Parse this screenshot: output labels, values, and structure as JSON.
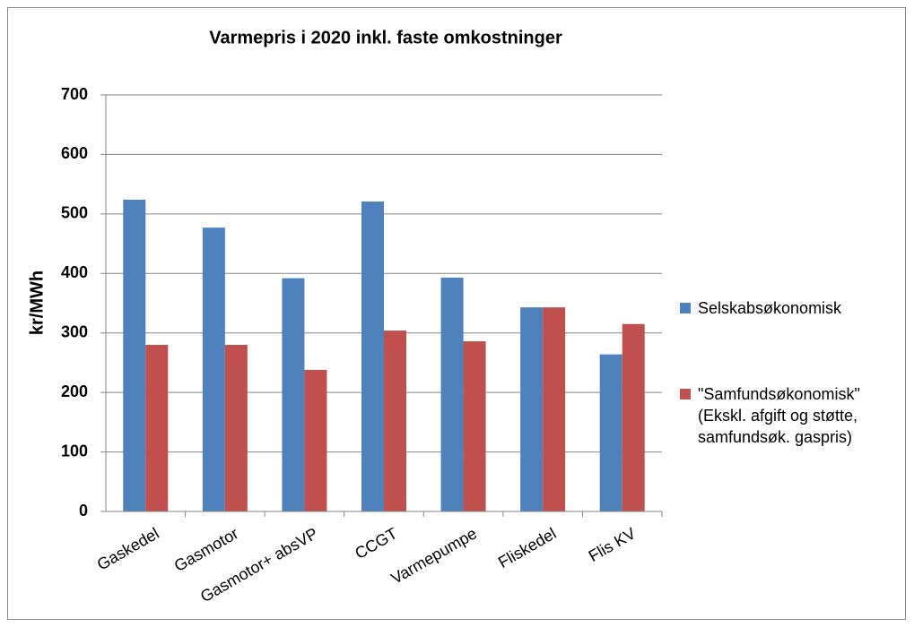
{
  "chart_data": {
    "type": "bar",
    "title": "Varmepris i 2020 inkl. faste omkostninger",
    "y_label": "kr/MWh",
    "categories": [
      "Gaskedel",
      "Gasmotor",
      "Gasmotor+ absVP",
      "CCGT",
      "Varmepumpe",
      "Fliskedel",
      "Flis KV"
    ],
    "series": [
      {
        "name": "Selskabsøkonomisk",
        "color": "#4f81bd",
        "values": [
          524,
          477,
          392,
          521,
          393,
          343,
          264
        ]
      },
      {
        "name": "\"Samfundsøkonomisk\" (Ekskl. afgift og støtte, samfundsøk. gaspris)",
        "color": "#c0504d",
        "values": [
          280,
          280,
          238,
          304,
          286,
          343,
          315
        ]
      }
    ],
    "ylim": [
      0,
      700
    ],
    "yticks": [
      0,
      100,
      200,
      300,
      400,
      500,
      600,
      700
    ],
    "grid": true,
    "legend": "right"
  }
}
